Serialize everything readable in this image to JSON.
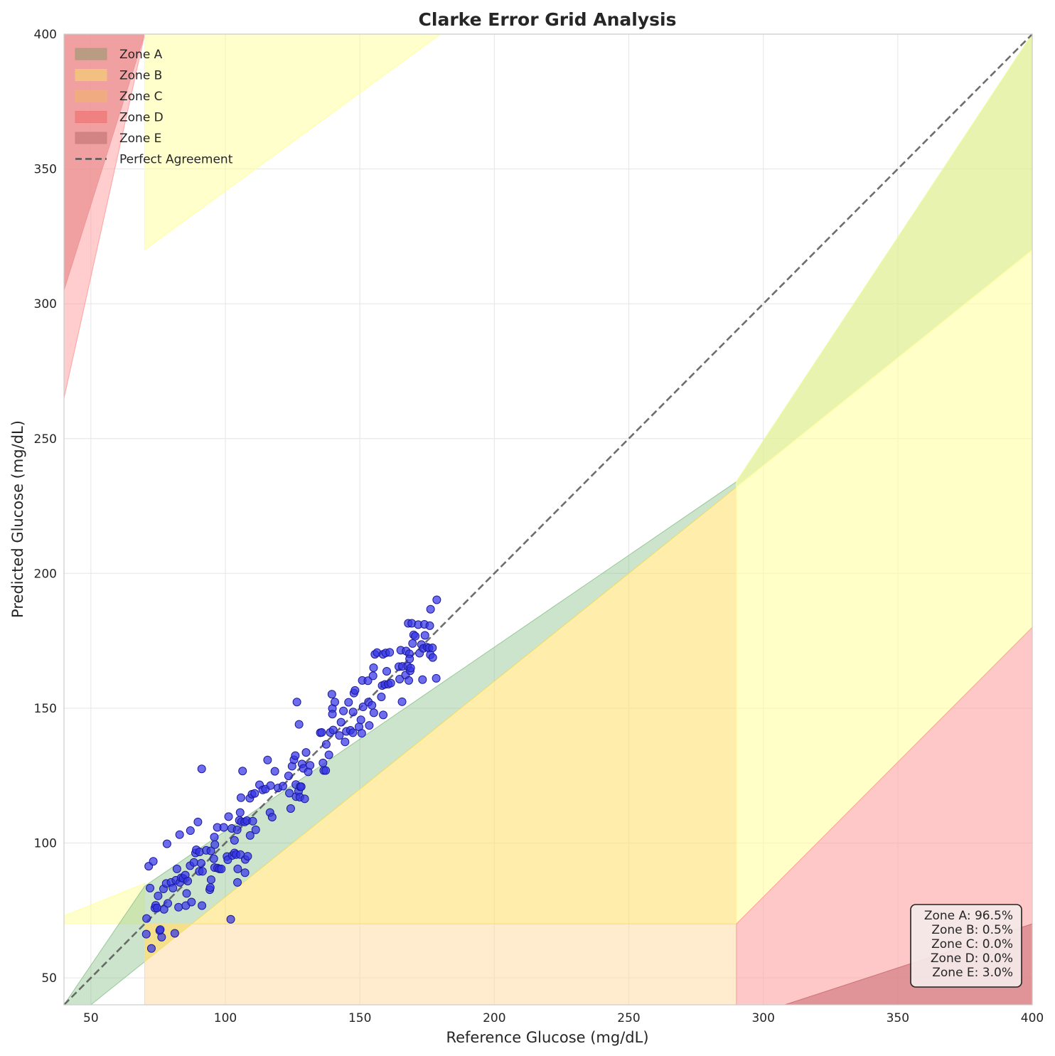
{
  "chart_data": {
    "type": "scatter",
    "title": "Clarke Error Grid Analysis",
    "xlabel": "Reference Glucose (mg/dL)",
    "ylabel": "Predicted Glucose (mg/dL)",
    "xlim": [
      40,
      400
    ],
    "ylim": [
      40,
      400
    ],
    "xticks": [
      50,
      100,
      150,
      200,
      250,
      300,
      350,
      400
    ],
    "yticks": [
      50,
      100,
      150,
      200,
      250,
      300,
      350,
      400
    ],
    "grid": true,
    "legend_position": "top-left",
    "legend": [
      {
        "label": "Zone A",
        "color": "#b09a7e"
      },
      {
        "label": "Zone B",
        "color": "#f2c57a"
      },
      {
        "label": "Zone C",
        "color": "#f0ae7a"
      },
      {
        "label": "Zone D",
        "color": "#ee7b7b"
      },
      {
        "label": "Zone E",
        "color": "#cd7f7f"
      },
      {
        "label": "Perfect Agreement",
        "color": "#555555",
        "dashed": true
      }
    ],
    "stats": [
      "Zone A: 96.5%",
      "Zone B: 0.5%",
      "Zone C: 0.0%",
      "Zone D: 0.0%",
      "Zone E: 3.0%"
    ],
    "zones": [
      {
        "id": "zone-e-upper-left",
        "color": "#d9878c",
        "opacity": 0.75,
        "points": [
          [
            40,
            400
          ],
          [
            40,
            305
          ],
          [
            70,
            400
          ]
        ]
      },
      {
        "id": "zone-d-upper-left",
        "color": "#ff9b9b",
        "opacity": 0.5,
        "points": [
          [
            40,
            265
          ],
          [
            70,
            400
          ],
          [
            40,
            400
          ]
        ]
      },
      {
        "id": "zone-c-upper",
        "color": "#ffff99",
        "opacity": 0.5,
        "points": [
          [
            70,
            320
          ],
          [
            180,
            400
          ],
          [
            70,
            400
          ]
        ]
      },
      {
        "id": "zone-c-left",
        "color": "#ffff99",
        "opacity": 0.5,
        "points": [
          [
            40,
            70
          ],
          [
            70,
            70
          ],
          [
            70,
            85
          ],
          [
            40,
            73
          ]
        ]
      },
      {
        "id": "zone-a",
        "color": "#8fc48f",
        "opacity": 0.45,
        "points": [
          [
            40,
            40
          ],
          [
            50,
            40
          ],
          [
            70,
            56
          ],
          [
            290,
            232
          ],
          [
            400,
            320
          ],
          [
            400,
            400
          ],
          [
            290,
            234
          ],
          [
            70,
            84
          ],
          [
            40,
            40
          ]
        ]
      },
      {
        "id": "zone-b-upper",
        "color": "#ffff99",
        "opacity": 0.55,
        "points": [
          [
            290,
            234
          ],
          [
            400,
            400
          ],
          [
            400,
            320
          ],
          [
            290,
            232
          ]
        ]
      },
      {
        "id": "zone-c-lower-strip",
        "color": "#ffd9a0",
        "opacity": 0.5,
        "points": [
          [
            70,
            40
          ],
          [
            290,
            40
          ],
          [
            290,
            70
          ],
          [
            70,
            70
          ]
        ]
      },
      {
        "id": "zone-b-lower",
        "color": "#ffe066",
        "opacity": 0.55,
        "points": [
          [
            70,
            56
          ],
          [
            70,
            70
          ],
          [
            290,
            70
          ],
          [
            290,
            232
          ]
        ]
      },
      {
        "id": "zone-b-lower-right",
        "color": "#ffff99",
        "opacity": 0.55,
        "points": [
          [
            290,
            70
          ],
          [
            290,
            232
          ],
          [
            400,
            320
          ],
          [
            400,
            180
          ]
        ]
      },
      {
        "id": "zone-d-lower-right",
        "color": "#ff9b9b",
        "opacity": 0.55,
        "points": [
          [
            290,
            40
          ],
          [
            290,
            70
          ],
          [
            400,
            180
          ],
          [
            400,
            40
          ]
        ]
      },
      {
        "id": "zone-e-lower-right",
        "color": "#c86a70",
        "opacity": 0.55,
        "points": [
          [
            308,
            40
          ],
          [
            400,
            70
          ],
          [
            400,
            40
          ]
        ]
      }
    ],
    "series": [
      {
        "color": "#3535e8",
        "points": [
          [
            70.6,
            66.2
          ],
          [
            70.7,
            72
          ],
          [
            71.5,
            91.4
          ],
          [
            72,
            83.3
          ],
          [
            72.5,
            60.9
          ],
          [
            73.2,
            93.2
          ],
          [
            73.8,
            75.9
          ],
          [
            74.1,
            76.9
          ],
          [
            74.6,
            75.9
          ],
          [
            75,
            80.4
          ],
          [
            75.6,
            67.5
          ],
          [
            75.8,
            67.9
          ],
          [
            76.3,
            65.1
          ],
          [
            77,
            83
          ],
          [
            77.2,
            75.4
          ],
          [
            78,
            85
          ],
          [
            78.3,
            99.7
          ],
          [
            78.6,
            77.6
          ],
          [
            79.8,
            85.4
          ],
          [
            80.5,
            83.3
          ],
          [
            81.2,
            66.5
          ],
          [
            81.6,
            86.2
          ],
          [
            82,
            90.4
          ],
          [
            82.6,
            76.2
          ],
          [
            83,
            103.1
          ],
          [
            83.1,
            85.4
          ],
          [
            83.6,
            87.1
          ],
          [
            84.3,
            86.9
          ],
          [
            85.1,
            88.1
          ],
          [
            85.3,
            76.8
          ],
          [
            85.6,
            81.3
          ],
          [
            86,
            85.9
          ],
          [
            86.9,
            91.6
          ],
          [
            87,
            104.6
          ],
          [
            87.4,
            78.1
          ],
          [
            88.3,
            92.8
          ],
          [
            88.9,
            96.3
          ],
          [
            89.2,
            97.5
          ],
          [
            89.8,
            107.8
          ],
          [
            90.3,
            89.5
          ],
          [
            90.4,
            96.7
          ],
          [
            91,
            92.5
          ],
          [
            91.2,
            127.5
          ],
          [
            91.3,
            76.8
          ],
          [
            91.5,
            89.5
          ],
          [
            92.9,
            97.3
          ],
          [
            94.2,
            82.7
          ],
          [
            94.4,
            83.5
          ],
          [
            94.6,
            97.1
          ],
          [
            94.7,
            86.4
          ],
          [
            95.7,
            94.2
          ],
          [
            95.9,
            102.2
          ],
          [
            96,
            90.9
          ],
          [
            96.1,
            99.4
          ],
          [
            97,
            105.8
          ],
          [
            97.1,
            90.7
          ],
          [
            97.8,
            90.4
          ],
          [
            98.5,
            90.4
          ],
          [
            99.4,
            105.8
          ],
          [
            100.6,
            95
          ],
          [
            100.9,
            93.8
          ],
          [
            101.2,
            109.8
          ],
          [
            102,
            71.7
          ],
          [
            102.4,
            105.4
          ],
          [
            102.6,
            95.4
          ],
          [
            103.4,
            96.3
          ],
          [
            103.4,
            101
          ],
          [
            104,
            95.7
          ],
          [
            104.4,
            104.9
          ],
          [
            104.5,
            85.4
          ],
          [
            104.6,
            90.4
          ],
          [
            105.2,
            108.4
          ],
          [
            105.5,
            111.3
          ],
          [
            105.6,
            95.7
          ],
          [
            105.8,
            116.8
          ],
          [
            106,
            107.9
          ],
          [
            106.4,
            126.7
          ],
          [
            107.2,
            107.8
          ],
          [
            107.3,
            89
          ],
          [
            107.4,
            93.9
          ],
          [
            108,
            108.3
          ],
          [
            108.3,
            95.1
          ],
          [
            109.1,
            116.6
          ],
          [
            109.2,
            102.8
          ],
          [
            109.9,
            118.1
          ],
          [
            110.2,
            108.1
          ],
          [
            110.9,
            118.4
          ],
          [
            111.3,
            104.9
          ],
          [
            112.7,
            121.6
          ],
          [
            113.9,
            119.7
          ],
          [
            114.9,
            120
          ],
          [
            115.7,
            130.8
          ],
          [
            116.6,
            111.3
          ],
          [
            116.8,
            121.3
          ],
          [
            117.4,
            109.6
          ],
          [
            118.4,
            126.6
          ],
          [
            119.6,
            120.4
          ],
          [
            121.4,
            121.1
          ],
          [
            123.5,
            124.9
          ],
          [
            123.8,
            118.5
          ],
          [
            124.3,
            112.8
          ],
          [
            124.8,
            128.5
          ],
          [
            125.5,
            130.9
          ],
          [
            126,
            132.4
          ],
          [
            126.2,
            121.7
          ],
          [
            126.3,
            117.2
          ],
          [
            126.6,
            152.3
          ],
          [
            127.2,
            119.2
          ],
          [
            127.4,
            144
          ],
          [
            127.7,
            117
          ],
          [
            127.8,
            120.9
          ],
          [
            128.2,
            120.9
          ],
          [
            128.5,
            129.3
          ],
          [
            129,
            127.7
          ],
          [
            129.5,
            116.4
          ],
          [
            130,
            133.6
          ],
          [
            130.8,
            126.4
          ],
          [
            131.5,
            128.8
          ],
          [
            135.3,
            140.9
          ],
          [
            135.8,
            141
          ],
          [
            136.3,
            129.7
          ],
          [
            136.6,
            126.9
          ],
          [
            137.3,
            126.9
          ],
          [
            137.5,
            136.6
          ],
          [
            138.5,
            132.7
          ],
          [
            139,
            141
          ],
          [
            139.6,
            155.2
          ],
          [
            139.8,
            149.9
          ],
          [
            139.8,
            147.8
          ],
          [
            140.1,
            141.9
          ],
          [
            140.7,
            152.3
          ],
          [
            142.4,
            139.9
          ],
          [
            143,
            144.8
          ],
          [
            143.9,
            149
          ],
          [
            144.5,
            137.5
          ],
          [
            145,
            141.4
          ],
          [
            145.8,
            152.2
          ],
          [
            146.5,
            141.8
          ],
          [
            147.4,
            140.9
          ],
          [
            147.5,
            148.6
          ],
          [
            147.8,
            155.6
          ],
          [
            148.2,
            156.6
          ],
          [
            149.7,
            143.1
          ],
          [
            150.4,
            145.7
          ],
          [
            150.7,
            140.7
          ],
          [
            150.9,
            160.3
          ],
          [
            151.2,
            150.5
          ],
          [
            153,
            160.2
          ],
          [
            153.2,
            152.3
          ],
          [
            153.5,
            143.6
          ],
          [
            154.5,
            151.1
          ],
          [
            154.9,
            162
          ],
          [
            155.1,
            165
          ],
          [
            155.2,
            148.3
          ],
          [
            155.6,
            170
          ],
          [
            156.4,
            170.6
          ],
          [
            158,
            154.2
          ],
          [
            158.3,
            158.4
          ],
          [
            158.6,
            170
          ],
          [
            158.7,
            147.5
          ],
          [
            159.3,
            158.8
          ],
          [
            159.6,
            170.5
          ],
          [
            160,
            163.7
          ],
          [
            160.6,
            158.9
          ],
          [
            161.1,
            170.7
          ],
          [
            161.5,
            159.3
          ],
          [
            164.5,
            165.4
          ],
          [
            164.8,
            160.8
          ],
          [
            165.2,
            171.5
          ],
          [
            165.7,
            152.4
          ],
          [
            165.8,
            165.5
          ],
          [
            167,
            162.3
          ],
          [
            167.2,
            171.2
          ],
          [
            167.8,
            165.5
          ],
          [
            168,
            181.5
          ],
          [
            168.2,
            160.3
          ],
          [
            168.4,
            170.2
          ],
          [
            168.5,
            168.3
          ],
          [
            168.7,
            163.9
          ],
          [
            168.9,
            164.9
          ],
          [
            169.3,
            181.5
          ],
          [
            169.6,
            174
          ],
          [
            170,
            177.2
          ],
          [
            170.6,
            176.7
          ],
          [
            171.7,
            181
          ],
          [
            172.2,
            170.4
          ],
          [
            172.9,
            173.6
          ],
          [
            173.3,
            160.6
          ],
          [
            173.6,
            172.2
          ],
          [
            174,
            181.1
          ],
          [
            174.2,
            177
          ],
          [
            175,
            172.6
          ],
          [
            175.7,
            172.3
          ],
          [
            176,
            180.6
          ],
          [
            176.2,
            169.8
          ],
          [
            176.3,
            186.7
          ],
          [
            177,
            172.4
          ],
          [
            177.1,
            168.8
          ],
          [
            178.4,
            161.1
          ],
          [
            178.6,
            190.2
          ]
        ]
      }
    ]
  }
}
